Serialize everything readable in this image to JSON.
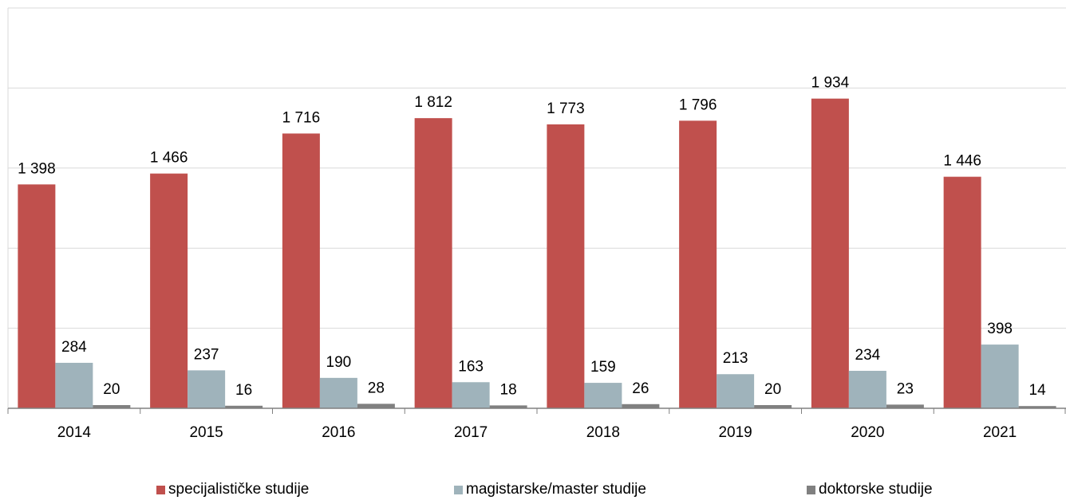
{
  "chart_data": {
    "type": "bar",
    "title": "",
    "xlabel": "",
    "ylabel": "",
    "ylim": [
      0,
      2500
    ],
    "grid": true,
    "legend_position": "bottom",
    "categories": [
      "2014",
      "2015",
      "2016",
      "2017",
      "2018",
      "2019",
      "2020",
      "2021"
    ],
    "series": [
      {
        "name": "specijalističke studije",
        "color": "#c0504d",
        "values": [
          1398,
          1466,
          1716,
          1812,
          1773,
          1796,
          1934,
          1446
        ],
        "labels": [
          "1 398",
          "1 466",
          "1 716",
          "1 812",
          "1 773",
          "1 796",
          "1 934",
          "1 446"
        ]
      },
      {
        "name": "magistarske/master studije",
        "color": "#9fb3bb",
        "values": [
          284,
          237,
          190,
          163,
          159,
          213,
          234,
          398
        ],
        "labels": [
          "284",
          "237",
          "190",
          "163",
          "159",
          "213",
          "234",
          "398"
        ]
      },
      {
        "name": "doktorske studije",
        "color": "#808080",
        "values": [
          20,
          16,
          28,
          18,
          26,
          20,
          23,
          14
        ],
        "labels": [
          "20",
          "16",
          "28",
          "18",
          "26",
          "20",
          "23",
          "14"
        ]
      }
    ]
  }
}
